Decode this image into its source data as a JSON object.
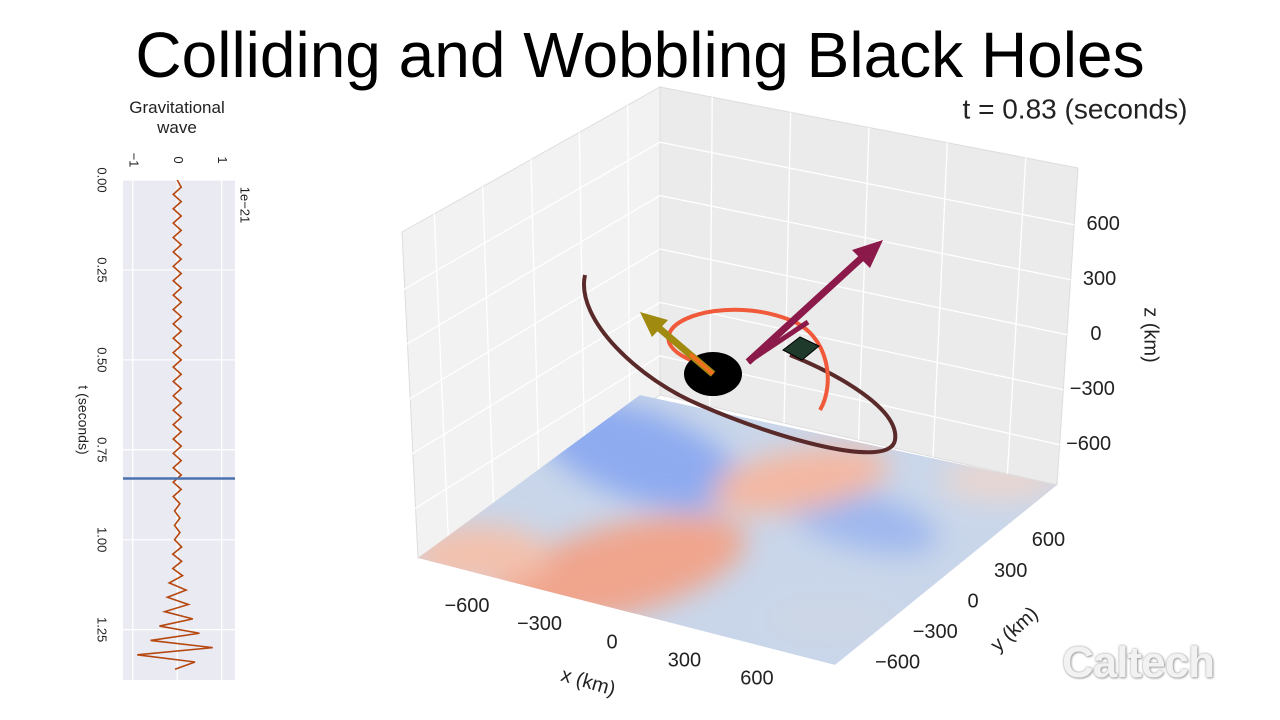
{
  "title": "Colliding and Wobbling Black Holes",
  "watermark": "Caltech",
  "chart_data": [
    {
      "type": "line",
      "orientation": "vertical",
      "title": "Gravitational wave",
      "xlabel": "t (seconds)",
      "offset_label": "1e−21",
      "x": [
        0,
        0.02,
        0.04,
        0.06,
        0.08,
        0.1,
        0.12,
        0.14,
        0.16,
        0.18,
        0.2,
        0.22,
        0.24,
        0.26,
        0.28,
        0.3,
        0.32,
        0.34,
        0.36,
        0.38,
        0.4,
        0.42,
        0.44,
        0.46,
        0.48,
        0.5,
        0.52,
        0.54,
        0.56,
        0.58,
        0.6,
        0.62,
        0.64,
        0.66,
        0.68,
        0.7,
        0.72,
        0.74,
        0.76,
        0.78,
        0.8,
        0.82,
        0.84,
        0.86,
        0.88,
        0.9,
        0.92,
        0.94,
        0.96,
        0.98,
        1,
        1.02,
        1.04,
        1.06,
        1.08,
        1.1,
        1.12,
        1.14,
        1.16,
        1.18,
        1.2,
        1.22,
        1.24,
        1.26,
        1.28,
        1.3,
        1.32,
        1.34,
        1.36
      ],
      "values": [
        0,
        0.09,
        -0.09,
        0.09,
        -0.09,
        0.09,
        -0.09,
        0.09,
        -0.09,
        0.09,
        -0.09,
        0.09,
        -0.09,
        0.09,
        -0.09,
        0.09,
        -0.09,
        0.09,
        -0.09,
        0.09,
        -0.09,
        0.09,
        -0.09,
        0.09,
        -0.09,
        0.09,
        -0.09,
        0.09,
        -0.09,
        0.09,
        -0.09,
        0.09,
        -0.09,
        0.09,
        -0.09,
        0.09,
        -0.09,
        0.09,
        -0.09,
        0.09,
        -0.09,
        0.09,
        -0.09,
        0.09,
        -0.09,
        0.06,
        -0.06,
        0.06,
        -0.06,
        0.06,
        -0.06,
        0.1,
        -0.1,
        0.1,
        -0.1,
        0.12,
        -0.18,
        0.2,
        -0.22,
        0.25,
        -0.28,
        0.35,
        -0.4,
        0.5,
        -0.6,
        0.8,
        -0.9,
        0.4,
        -0.05
      ],
      "color": "#b5470f",
      "xlim": [
        0,
        1.39
      ],
      "xticks": [
        {
          "value": 0,
          "label": "0.00"
        },
        {
          "value": 0.25,
          "label": "0.25"
        },
        {
          "value": 0.5,
          "label": "0.50"
        },
        {
          "value": 0.75,
          "label": "0.75"
        },
        {
          "value": 1,
          "label": "1.00"
        },
        {
          "value": 1.25,
          "label": "1.25"
        }
      ],
      "ylim": [
        -1.22,
        1.3
      ],
      "yticks": [
        {
          "value": -1,
          "label": "−1"
        },
        0,
        1
      ],
      "current_time": 0.83,
      "marker_color": "#4c72b0",
      "grid": true
    },
    {
      "type": "surface3d",
      "annotation": "t = 0.83 (seconds)",
      "xlabel": "x (km)",
      "ylabel": "y (km)",
      "zlabel": "z (km)",
      "xlim": [
        -800,
        800
      ],
      "xticks": [
        {
          "value": -600,
          "label": "−600"
        },
        {
          "value": -300,
          "label": "−300"
        },
        0,
        300,
        600
      ],
      "ylim": [
        -800,
        800
      ],
      "yticks": [
        {
          "value": -600,
          "label": "−600"
        },
        {
          "value": -300,
          "label": "−300"
        },
        0,
        300,
        600
      ],
      "zlim": [
        -820,
        910
      ],
      "zticks": [
        {
          "value": -600,
          "label": "−600"
        },
        {
          "value": -300,
          "label": "−300"
        },
        0,
        300,
        600
      ]
    }
  ]
}
